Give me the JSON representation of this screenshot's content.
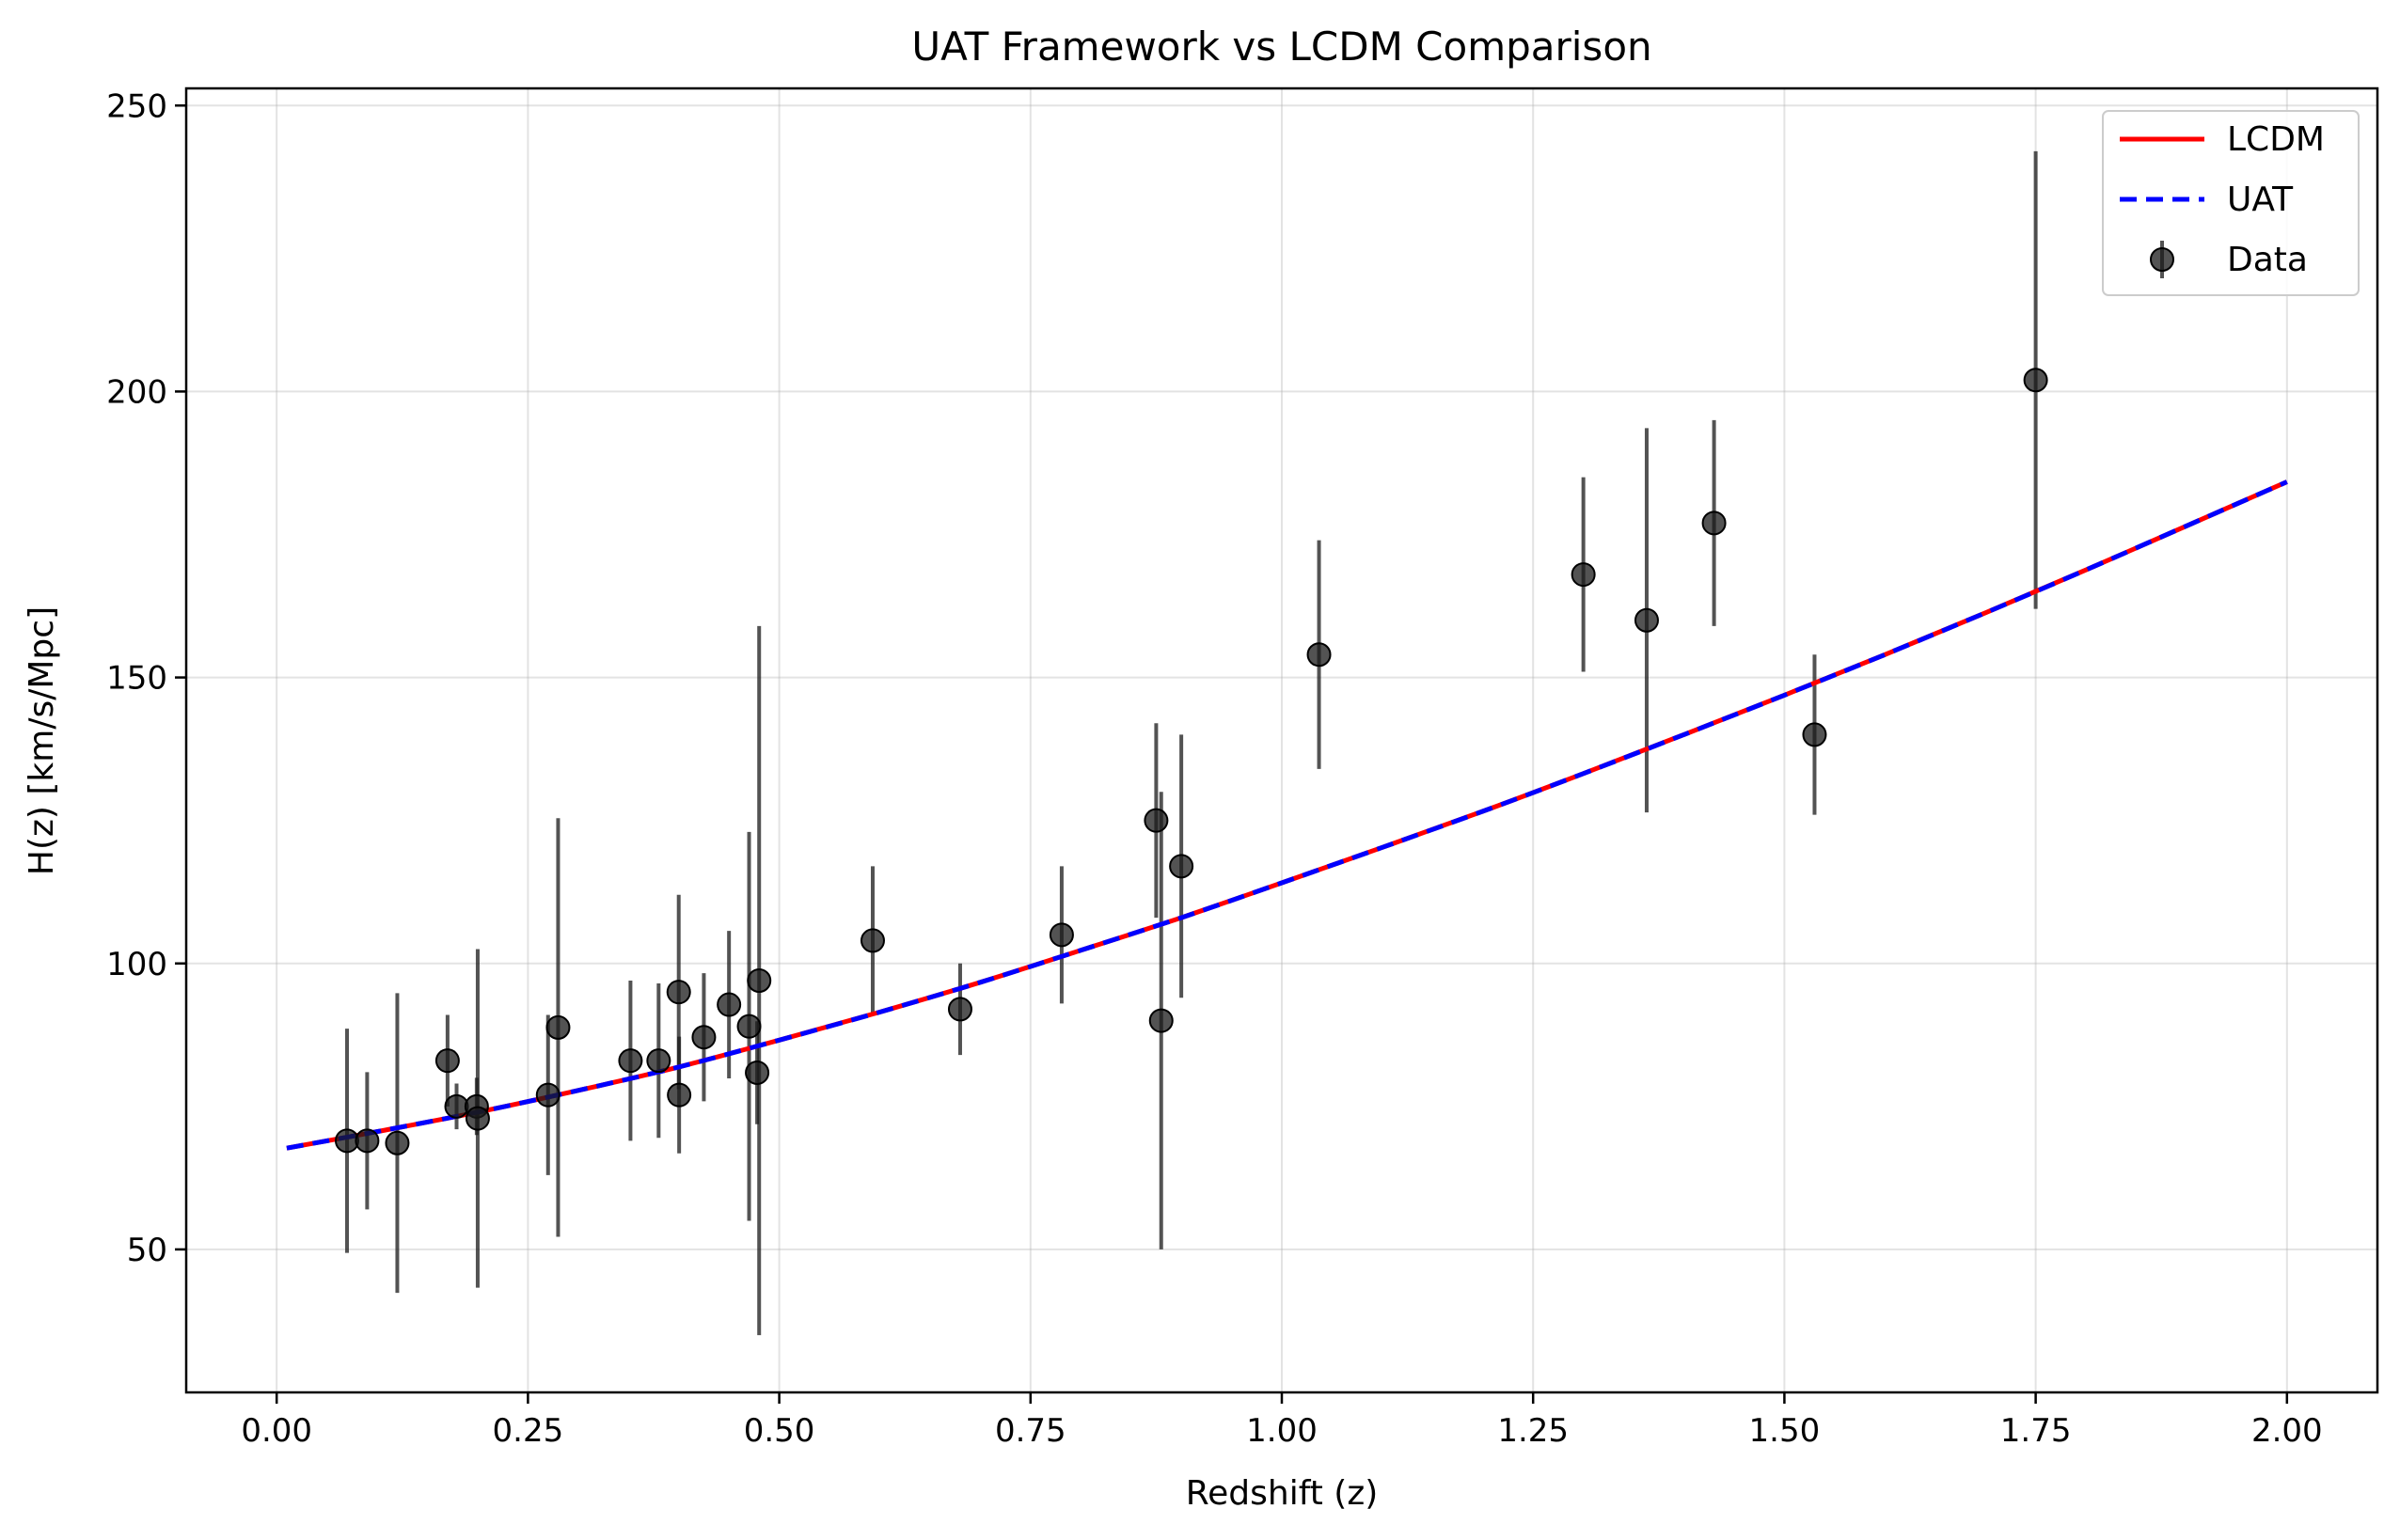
{
  "chart_data": {
    "type": "line",
    "title": "UAT Framework vs LCDM Comparison",
    "xlabel": "Redshift (z)",
    "ylabel": "H(z) [km/s/Mpc]",
    "xlim": [
      -0.09,
      2.09
    ],
    "ylim": [
      25,
      253
    ],
    "x_ticks": [
      "0.00",
      "0.25",
      "0.50",
      "0.75",
      "1.00",
      "1.25",
      "1.50",
      "1.75",
      "2.00"
    ],
    "x_tick_values": [
      0,
      0.25,
      0.5,
      0.75,
      1.0,
      1.25,
      1.5,
      1.75,
      2.0
    ],
    "y_ticks": [
      "50",
      "100",
      "150",
      "200",
      "250"
    ],
    "y_tick_values": [
      50,
      100,
      150,
      200,
      250
    ],
    "grid": true,
    "legend_position": "top-right",
    "series": [
      {
        "name": "LCDM",
        "style": "solid",
        "color": "#ff0000",
        "x": [
          0.01,
          0.1,
          0.2,
          0.3,
          0.4,
          0.5,
          0.6,
          0.7,
          0.8,
          0.9,
          1.0,
          1.1,
          1.2,
          1.3,
          1.4,
          1.5,
          1.6,
          1.7,
          1.8,
          1.9,
          2.0
        ],
        "y": [
          67.7,
          70.6,
          74.0,
          77.8,
          81.9,
          86.6,
          91.5,
          96.7,
          102.3,
          108.0,
          114.1,
          120.3,
          126.6,
          133.2,
          140.0,
          146.9,
          154.0,
          161.3,
          168.8,
          176.5,
          184.2
        ]
      },
      {
        "name": "UAT",
        "style": "dashed",
        "color": "#0000ff",
        "x": [
          0.01,
          0.1,
          0.2,
          0.3,
          0.4,
          0.5,
          0.6,
          0.7,
          0.8,
          0.9,
          1.0,
          1.1,
          1.2,
          1.3,
          1.4,
          1.5,
          1.6,
          1.7,
          1.8,
          1.9,
          2.0
        ],
        "y": [
          67.7,
          70.6,
          74.0,
          77.8,
          81.9,
          86.6,
          91.5,
          96.7,
          102.3,
          108.0,
          114.1,
          120.3,
          126.6,
          133.2,
          140.0,
          146.9,
          154.0,
          161.3,
          168.8,
          176.5,
          184.2
        ]
      },
      {
        "name": "Data",
        "style": "errorbar",
        "color": "#1a1a1a",
        "points": [
          {
            "x": 0.07,
            "y": 69,
            "err": 19.6
          },
          {
            "x": 0.09,
            "y": 69,
            "err": 12
          },
          {
            "x": 0.12,
            "y": 68.6,
            "err": 26.2
          },
          {
            "x": 0.17,
            "y": 83,
            "err": 8
          },
          {
            "x": 0.179,
            "y": 75,
            "err": 4
          },
          {
            "x": 0.199,
            "y": 75,
            "err": 5
          },
          {
            "x": 0.2,
            "y": 72.9,
            "err": 29.6
          },
          {
            "x": 0.27,
            "y": 77,
            "err": 14
          },
          {
            "x": 0.28,
            "y": 88.8,
            "err": 36.6
          },
          {
            "x": 0.352,
            "y": 83,
            "err": 14
          },
          {
            "x": 0.38,
            "y": 83,
            "err": 13.5
          },
          {
            "x": 0.4,
            "y": 95,
            "err": 17
          },
          {
            "x": 0.4004,
            "y": 77,
            "err": 10.2
          },
          {
            "x": 0.425,
            "y": 87.1,
            "err": 11.2
          },
          {
            "x": 0.45,
            "y": 92.8,
            "err": 12.9
          },
          {
            "x": 0.47,
            "y": 89,
            "err": 34
          },
          {
            "x": 0.478,
            "y": 80.9,
            "err": 9
          },
          {
            "x": 0.48,
            "y": 97,
            "err": 62
          },
          {
            "x": 0.593,
            "y": 104,
            "err": 13
          },
          {
            "x": 0.68,
            "y": 92,
            "err": 8
          },
          {
            "x": 0.781,
            "y": 105,
            "err": 12
          },
          {
            "x": 0.875,
            "y": 125,
            "err": 17
          },
          {
            "x": 0.88,
            "y": 90,
            "err": 40
          },
          {
            "x": 0.9,
            "y": 117,
            "err": 23
          },
          {
            "x": 1.037,
            "y": 154,
            "err": 20
          },
          {
            "x": 1.3,
            "y": 168,
            "err": 17
          },
          {
            "x": 1.363,
            "y": 160,
            "err": 33.6
          },
          {
            "x": 1.43,
            "y": 177,
            "err": 18
          },
          {
            "x": 1.53,
            "y": 140,
            "err": 14
          },
          {
            "x": 1.75,
            "y": 202,
            "err": 40
          }
        ]
      }
    ]
  }
}
